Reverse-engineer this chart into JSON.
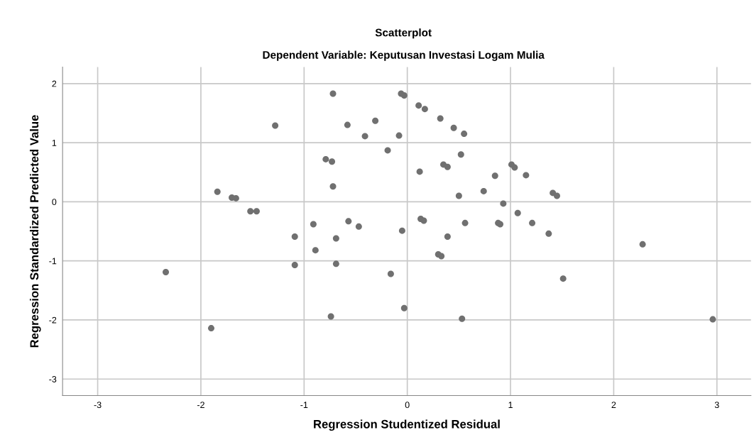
{
  "chart_data": {
    "type": "scatter",
    "title": "Scatterplot",
    "subtitle": "Dependent Variable: Keputusan Investasi Logam Mulia",
    "xlabel": "Regression Studentized Residual",
    "ylabel": "Regression Standardized Predicted Value",
    "xlim": [
      -3.34,
      3.33
    ],
    "ylim": [
      -3.28,
      2.28
    ],
    "xticks": [
      -3,
      -2,
      -1,
      0,
      1,
      2,
      3
    ],
    "yticks": [
      -3,
      -2,
      -1,
      0,
      1,
      2
    ],
    "grid": true,
    "marker": "circle",
    "series": [
      {
        "color": "#707070",
        "x": [
          -0.72,
          -0.06,
          -0.03,
          -1.28,
          -0.58,
          -0.31,
          -0.41,
          -0.08,
          -0.19,
          -0.79,
          -0.73,
          -0.72,
          -1.84,
          -1.7,
          -1.66,
          -1.52,
          -1.46,
          -0.57,
          -0.47,
          -0.05,
          -0.91,
          -1.09,
          -0.69,
          -0.89,
          -1.09,
          -0.69,
          -0.16,
          -2.34,
          -0.03,
          -0.74,
          -1.9,
          0.11,
          0.17,
          0.32,
          0.45,
          0.55,
          0.52,
          0.35,
          0.39,
          0.12,
          1.01,
          1.04,
          0.85,
          1.15,
          0.74,
          0.5,
          1.41,
          1.45,
          0.93,
          1.07,
          0.13,
          0.16,
          0.56,
          0.88,
          0.9,
          1.21,
          1.37,
          0.39,
          0.3,
          0.33,
          2.28,
          1.51,
          0.53,
          2.96
        ],
        "values": [
          1.83,
          1.83,
          1.8,
          1.29,
          1.3,
          1.37,
          1.11,
          1.12,
          0.87,
          0.72,
          0.68,
          0.26,
          0.17,
          0.07,
          0.06,
          -0.16,
          -0.16,
          -0.33,
          -0.42,
          -0.49,
          -0.38,
          -0.59,
          -0.62,
          -0.82,
          -1.07,
          -1.05,
          -1.22,
          -1.19,
          -1.8,
          -1.94,
          -2.14,
          1.63,
          1.57,
          1.41,
          1.25,
          1.15,
          0.8,
          0.63,
          0.59,
          0.51,
          0.63,
          0.58,
          0.44,
          0.45,
          0.18,
          0.1,
          0.15,
          0.1,
          -0.03,
          -0.19,
          -0.29,
          -0.32,
          -0.36,
          -0.36,
          -0.38,
          -0.36,
          -0.54,
          -0.59,
          -0.89,
          -0.92,
          -0.72,
          -1.3,
          -1.98,
          -1.99
        ]
      }
    ]
  }
}
